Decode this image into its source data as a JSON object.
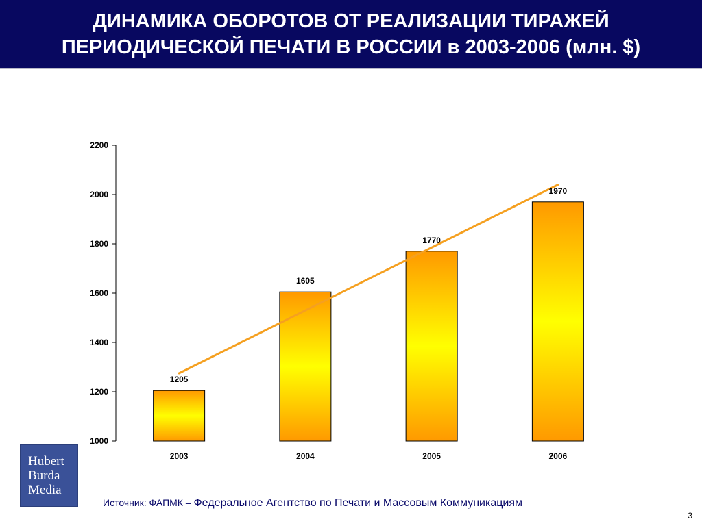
{
  "slide": {
    "title_line1": "ДИНАМИКА ОБОРОТОВ ОТ РЕАЛИЗАЦИИ ТИРАЖЕЙ",
    "title_line2": "ПЕРИОДИЧЕСКОЙ ПЕЧАТИ В РОССИИ в 2003-2006 (млн. $)",
    "source_prefix": "Источник: ФАПМК – ",
    "source_text": "Федеральное Агентство по Печати и Массовым Коммуникациям",
    "page_number": "3",
    "logo_lines": [
      "Hubert",
      "Burda",
      "Media"
    ]
  },
  "colors": {
    "title_bg": "#080860",
    "bar_center": "#ffff00",
    "bar_edge": "#ff9900",
    "trend_line": "#f5a020",
    "logo_bg": "#3a5198",
    "source_text": "#0a0a6a"
  },
  "chart_data": {
    "type": "bar",
    "categories": [
      "2003",
      "2004",
      "2005",
      "2006"
    ],
    "values": [
      1205,
      1605,
      1770,
      1970
    ],
    "data_labels": [
      "1205",
      "1605",
      "1770",
      "1970"
    ],
    "ylim": [
      1000,
      2200
    ],
    "y_ticks": [
      1000,
      1200,
      1400,
      1600,
      1800,
      2000,
      2200
    ],
    "trendline": {
      "type": "linear",
      "start": 1275,
      "end": 2040
    },
    "grid": false,
    "legend": "none"
  }
}
